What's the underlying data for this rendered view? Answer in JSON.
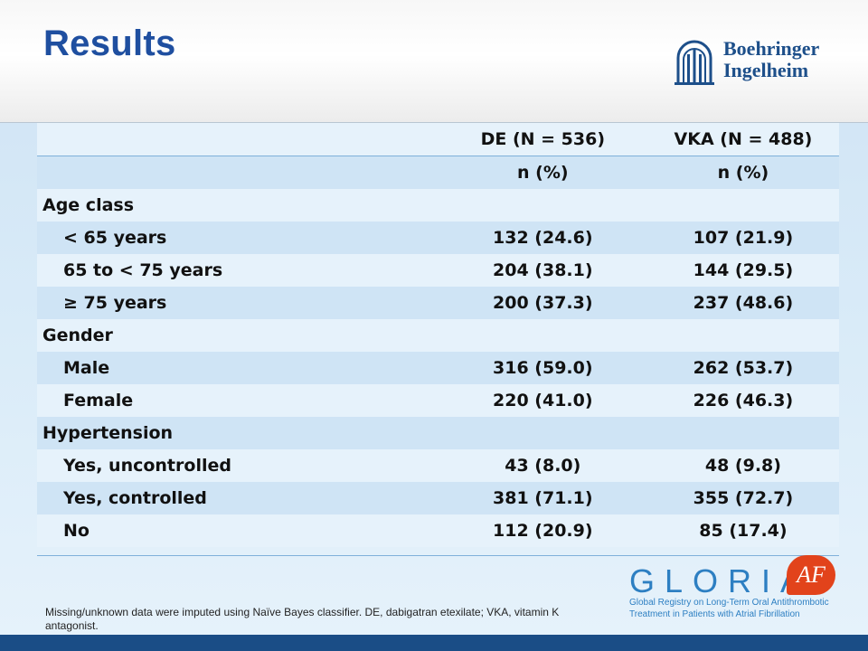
{
  "slide": {
    "title": "Results",
    "footnote": "Missing/unknown data were imputed using Naïve Bayes classifier. DE, dabigatran etexilate; VKA, vitamin K antagonist."
  },
  "logos": {
    "company": [
      "Boehringer",
      "Ingelheim"
    ],
    "study": {
      "word": "GLORIA",
      "badge": "AF",
      "tagline": [
        "Global Registry on Long-Term Oral Antithrombotic",
        "Treatment in Patients with Atrial Fibrillation"
      ]
    }
  },
  "table": {
    "header": {
      "label": "",
      "col1": "DE (N = 536)",
      "col2": "VKA (N = 488)"
    },
    "subheader": {
      "label": "",
      "col1": "n (%)",
      "col2": "n (%)"
    },
    "rows": [
      {
        "label": "Age class",
        "col1": "",
        "col2": ""
      },
      {
        "label": "< 65 years",
        "col1": "132 (24.6)",
        "col2": "107 (21.9)"
      },
      {
        "label": "65 to < 75 years",
        "col1": "204 (38.1)",
        "col2": "144 (29.5)"
      },
      {
        "label": "≥ 75 years",
        "col1": "200 (37.3)",
        "col2": "237 (48.6)"
      },
      {
        "label": "Gender",
        "col1": "",
        "col2": ""
      },
      {
        "label": "Male",
        "col1": "316 (59.0)",
        "col2": "262 (53.7)"
      },
      {
        "label": "Female",
        "col1": "220 (41.0)",
        "col2": "226 (46.3)"
      },
      {
        "label": "Hypertension",
        "col1": "",
        "col2": ""
      },
      {
        "label": "Yes, uncontrolled",
        "col1": "43 (8.0)",
        "col2": "48 (9.8)"
      },
      {
        "label": "Yes, controlled",
        "col1": "381 (71.1)",
        "col2": "355 (72.7)"
      },
      {
        "label": "No",
        "col1": "112 (20.9)",
        "col2": "85 (17.4)"
      }
    ]
  },
  "colors": {
    "title": "#1f4fa0",
    "band": "#cfe4f5",
    "accent_bar": "#1a4d86",
    "gloria_blue": "#2d7fc2",
    "gloria_orange": "#e2431b"
  }
}
